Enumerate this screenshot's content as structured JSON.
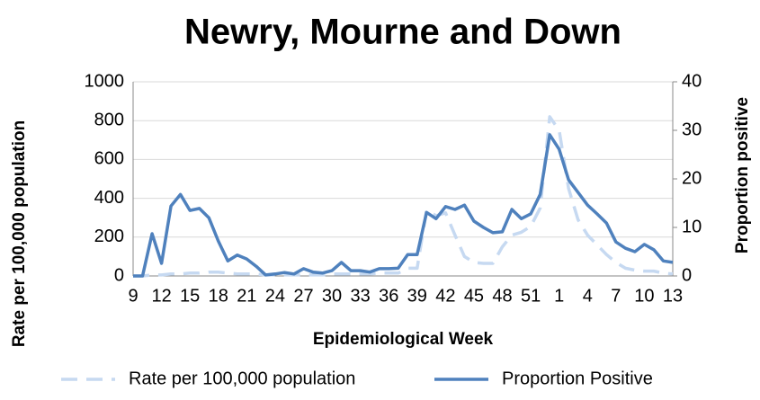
{
  "chart_data": {
    "type": "line",
    "title": "Newry, Mourne and Down",
    "x_label": "Epidemiological Week",
    "y_label": "Rate per 100,000 population",
    "y2_label": "Proportion positive",
    "categories": [
      "9",
      null,
      null,
      "12",
      null,
      null,
      "15",
      null,
      null,
      "18",
      null,
      null,
      "21",
      null,
      null,
      "24",
      null,
      null,
      "27",
      null,
      null,
      "30",
      null,
      null,
      "33",
      null,
      null,
      "36",
      null,
      null,
      "39",
      null,
      null,
      "42",
      null,
      null,
      "45",
      null,
      null,
      "48",
      null,
      null,
      "51",
      null,
      null,
      "1",
      null,
      null,
      "4",
      null,
      null,
      "7",
      null,
      null,
      "10",
      null,
      null,
      "13"
    ],
    "series": [
      {
        "name": "Rate per 100,000 population",
        "color": "#c6d9f1",
        "dash": true,
        "values": [
          0,
          0,
          5,
          5,
          10,
          10,
          15,
          15,
          20,
          20,
          15,
          10,
          10,
          10,
          5,
          5,
          5,
          5,
          5,
          5,
          5,
          10,
          10,
          10,
          10,
          10,
          15,
          15,
          15,
          40,
          40,
          340,
          310,
          325,
          210,
          100,
          70,
          65,
          65,
          150,
          210,
          225,
          255,
          350,
          820,
          750,
          450,
          290,
          210,
          160,
          110,
          70,
          40,
          30,
          25,
          25,
          15,
          10
        ]
      },
      {
        "name": "Proportion Positive",
        "color": "#4f81bd",
        "axis": "y2",
        "values": [
          0,
          0,
          8.7,
          2.6,
          14.4,
          16.8,
          13.5,
          13.9,
          12,
          7.2,
          3.1,
          4.3,
          3.5,
          2,
          0.2,
          0.4,
          0.7,
          0.4,
          1.5,
          0.8,
          0.6,
          1.1,
          2.8,
          1.1,
          1.1,
          0.8,
          1.5,
          1.5,
          1.6,
          4.4,
          4.4,
          13.1,
          11.8,
          14.3,
          13.7,
          14.6,
          11.3,
          10,
          8.9,
          9.1,
          13.7,
          11.8,
          12.8,
          16.8,
          29.1,
          26.1,
          19.8,
          17.2,
          14.6,
          12.8,
          10.9,
          7,
          5.7,
          5,
          6.5,
          5.4,
          3.1,
          2.8
        ]
      }
    ],
    "ylim": [
      0,
      1000
    ],
    "yticks": [
      0,
      200,
      400,
      600,
      800,
      1000
    ],
    "y2lim": [
      0,
      40
    ],
    "y2ticks": [
      0,
      10,
      20,
      30,
      40
    ],
    "grid": true,
    "legend": "bottom"
  }
}
